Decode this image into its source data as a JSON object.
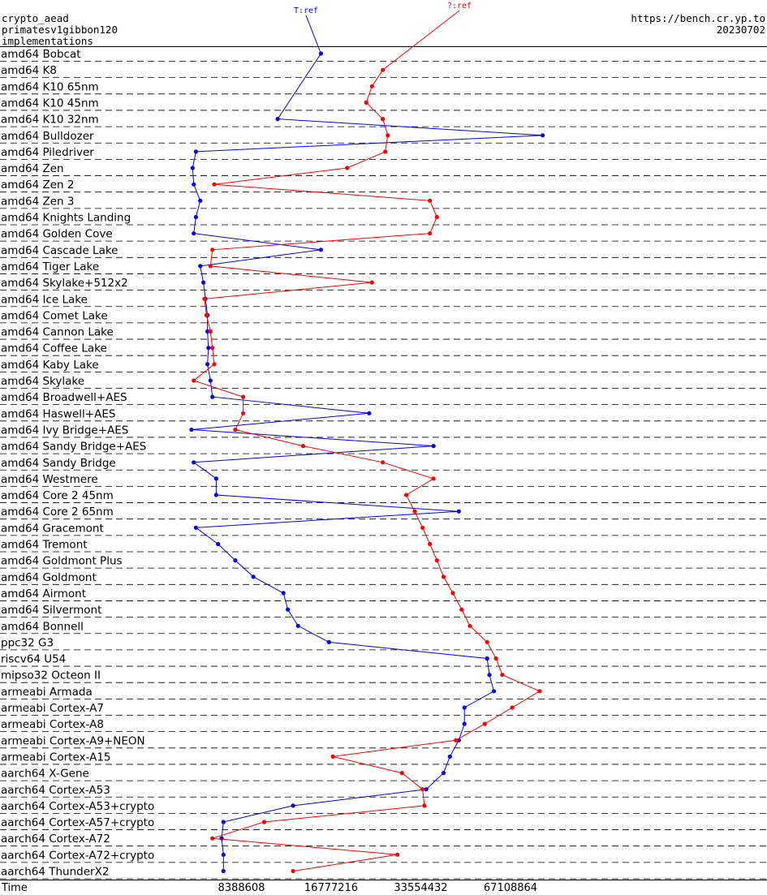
{
  "header": {
    "left_lines": [
      "crypto_aead",
      "primatesv1gibbon120",
      "implementations"
    ],
    "right_lines": [
      "https://bench.cr.yp.to",
      "20230702"
    ]
  },
  "chart_data": {
    "type": "line",
    "x_scale": "log2",
    "xlabel": "Time",
    "x_ticks": [
      8388608,
      16777216,
      33554432,
      67108864
    ],
    "x_tick_labels": [
      "8388608",
      "16777216",
      "33554432",
      "67108864"
    ],
    "categories": [
      "amd64 Bobcat",
      "amd64 K8",
      "amd64 K10 65nm",
      "amd64 K10 45nm",
      "amd64 K10 32nm",
      "amd64 Bulldozer",
      "amd64 Piledriver",
      "amd64 Zen",
      "amd64 Zen 2",
      "amd64 Zen 3",
      "amd64 Knights Landing",
      "amd64 Golden Cove",
      "amd64 Cascade Lake",
      "amd64 Tiger Lake",
      "amd64 Skylake+512x2",
      "amd64 Ice Lake",
      "amd64 Comet Lake",
      "amd64 Cannon Lake",
      "amd64 Coffee Lake",
      "amd64 Kaby Lake",
      "amd64 Skylake",
      "amd64 Broadwell+AES",
      "amd64 Haswell+AES",
      "amd64 Ivy Bridge+AES",
      "amd64 Sandy Bridge+AES",
      "amd64 Sandy Bridge",
      "amd64 Westmere",
      "amd64 Core 2 45nm",
      "amd64 Core 2 65nm",
      "amd64 Gracemont",
      "amd64 Tremont",
      "amd64 Goldmont Plus",
      "amd64 Goldmont",
      "amd64 Airmont",
      "amd64 Silvermont",
      "amd64 Bonnell",
      "ppc32 G3",
      "riscv64 U54",
      "mipso32 Octeon II",
      "armeabi Armada",
      "armeabi Cortex-A7",
      "armeabi Cortex-A8",
      "armeabi Cortex-A9+NEON",
      "armeabi Cortex-A15",
      "aarch64 X-Gene",
      "aarch64 Cortex-A53",
      "aarch64 Cortex-A53+crypto",
      "aarch64 Cortex-A57+crypto",
      "aarch64 Cortex-A72",
      "aarch64 Cortex-A72+crypto",
      "aarch64 ThunderX2"
    ],
    "series": [
      {
        "name": "T:ref",
        "color": "#0000ff",
        "points": [
          [
            0,
            15500000
          ],
          [
            4,
            11100000
          ],
          [
            5,
            86000000
          ],
          [
            6,
            5900000
          ],
          [
            7,
            5750000
          ],
          [
            8,
            5800000
          ],
          [
            9,
            6100000
          ],
          [
            10,
            5900000
          ],
          [
            11,
            5800000
          ],
          [
            12,
            15500000
          ],
          [
            13,
            6100000
          ],
          [
            14,
            6250000
          ],
          [
            15,
            6350000
          ],
          [
            16,
            6450000
          ],
          [
            17,
            6450000
          ],
          [
            18,
            6500000
          ],
          [
            19,
            6450000
          ],
          [
            20,
            6600000
          ],
          [
            21,
            6700000
          ],
          [
            22,
            22500000
          ],
          [
            23,
            5700000
          ],
          [
            24,
            37000000
          ],
          [
            25,
            5800000
          ],
          [
            26,
            6900000
          ],
          [
            27,
            6900000
          ],
          [
            28,
            45000000
          ],
          [
            29,
            5900000
          ],
          [
            30,
            7000000
          ],
          [
            31,
            8000000
          ],
          [
            32,
            9200000
          ],
          [
            33,
            11600000
          ],
          [
            34,
            12000000
          ],
          [
            35,
            13000000
          ],
          [
            36,
            16500000
          ],
          [
            37,
            56000000
          ],
          [
            38,
            57000000
          ],
          [
            39,
            59000000
          ],
          [
            40,
            47000000
          ],
          [
            41,
            47000000
          ],
          [
            42,
            45000000
          ],
          [
            43,
            42000000
          ],
          [
            44,
            40000000
          ],
          [
            45,
            35000000
          ],
          [
            46,
            12500000
          ],
          [
            47,
            7300000
          ],
          [
            48,
            7200000
          ],
          [
            49,
            7300000
          ],
          [
            50,
            7300000
          ]
        ]
      },
      {
        "name": "?:ref",
        "color": "#ff0000",
        "points": [
          [
            1,
            25000000
          ],
          [
            2,
            23000000
          ],
          [
            3,
            22000000
          ],
          [
            4,
            25000000
          ],
          [
            5,
            26000000
          ],
          [
            6,
            25500000
          ],
          [
            7,
            19000000
          ],
          [
            8,
            6800000
          ],
          [
            9,
            36000000
          ],
          [
            10,
            38000000
          ],
          [
            11,
            36000000
          ],
          [
            12,
            6700000
          ],
          [
            13,
            6600000
          ],
          [
            14,
            23000000
          ],
          [
            15,
            6300000
          ],
          [
            16,
            6400000
          ],
          [
            17,
            6600000
          ],
          [
            18,
            6700000
          ],
          [
            19,
            6800000
          ],
          [
            20,
            5800000
          ],
          [
            21,
            8500000
          ],
          [
            22,
            8500000
          ],
          [
            23,
            8000000
          ],
          [
            24,
            13500000
          ],
          [
            25,
            25000000
          ],
          [
            26,
            37000000
          ],
          [
            27,
            30000000
          ],
          [
            28,
            32000000
          ],
          [
            29,
            34000000
          ],
          [
            30,
            36000000
          ],
          [
            31,
            38000000
          ],
          [
            32,
            40000000
          ],
          [
            33,
            43000000
          ],
          [
            34,
            46000000
          ],
          [
            35,
            49000000
          ],
          [
            36,
            56000000
          ],
          [
            37,
            60000000
          ],
          [
            38,
            63000000
          ],
          [
            39,
            84000000
          ],
          [
            40,
            68000000
          ],
          [
            41,
            55000000
          ],
          [
            42,
            44000000
          ],
          [
            43,
            17000000
          ],
          [
            44,
            29000000
          ],
          [
            45,
            34000000
          ],
          [
            46,
            34500000
          ],
          [
            47,
            10000000
          ],
          [
            48,
            6700000
          ],
          [
            49,
            28000000
          ],
          [
            50,
            12500000
          ]
        ]
      }
    ],
    "series_labels": [
      {
        "text": "T:ref",
        "color": "#0000ff"
      },
      {
        "text": "?:ref",
        "color": "#ff0000"
      }
    ]
  }
}
